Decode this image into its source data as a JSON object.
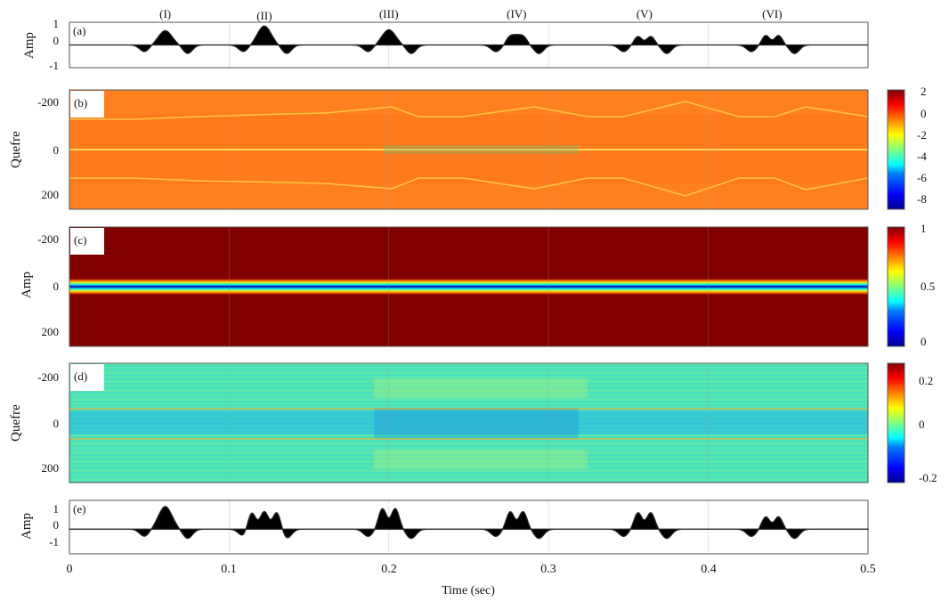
{
  "xlabel": "Time (sec)",
  "x_ticks": [
    "0",
    "0.1",
    "0.2",
    "0.3",
    "0.4",
    "0.5"
  ],
  "pulse_labels": [
    "(I)",
    "(II)",
    "(III)",
    "(IV)",
    "(V)",
    "(VI)"
  ],
  "colors": {
    "signal_fill": "#000000",
    "colormap": [
      "#00008f",
      "#0000ff",
      "#0080ff",
      "#00ffff",
      "#80ff80",
      "#ffff00",
      "#ff8000",
      "#ff0000",
      "#800000"
    ]
  },
  "chart_data": [
    {
      "type": "line",
      "panel_label": "(a)",
      "ylabel": "Amp",
      "xlim": [
        0,
        0.5
      ],
      "ylim": [
        -1.2,
        1.2
      ],
      "y_ticks": [
        "1",
        "0",
        "-1"
      ],
      "pulses": [
        {
          "label": "(I)",
          "center": 0.06,
          "peaks": 1,
          "amplitude": 0.75
        },
        {
          "label": "(II)",
          "center": 0.122,
          "peaks": 1,
          "amplitude": 1.0
        },
        {
          "label": "(III)",
          "center": 0.2,
          "peaks": 1,
          "amplitude": 0.8
        },
        {
          "label": "(IV)",
          "center": 0.28,
          "peaks": "flat",
          "amplitude": 0.55
        },
        {
          "label": "(V)",
          "center": 0.36,
          "peaks": 2,
          "amplitude": 0.45
        },
        {
          "label": "(VI)",
          "center": 0.44,
          "peaks": 2,
          "amplitude": 0.5
        }
      ]
    },
    {
      "type": "heatmap",
      "panel_label": "(b)",
      "ylabel": "Quefre",
      "xlim": [
        0,
        0.5
      ],
      "ylim": [
        -250,
        250
      ],
      "y_ticks": [
        "-200",
        "0",
        "200"
      ],
      "colorbar_ticks": [
        "2",
        "0",
        "-2",
        "-4",
        "-6",
        "-8"
      ],
      "clim": [
        -9,
        2.5
      ]
    },
    {
      "type": "heatmap",
      "panel_label": "(c)",
      "ylabel": "Amp",
      "xlim": [
        0,
        0.5
      ],
      "ylim": [
        -250,
        250
      ],
      "y_ticks": [
        "-200",
        "0",
        "200"
      ],
      "colorbar_ticks": [
        "1",
        "0.5",
        "0"
      ],
      "clim": [
        0,
        1
      ]
    },
    {
      "type": "heatmap",
      "panel_label": "(d)",
      "ylabel": "Quefre",
      "xlim": [
        0,
        0.5
      ],
      "ylim": [
        -250,
        250
      ],
      "y_ticks": [
        "-200",
        "0",
        "200"
      ],
      "colorbar_ticks": [
        "0.2",
        "0",
        "-0.2"
      ],
      "clim": [
        -0.27,
        0.27
      ]
    },
    {
      "type": "line",
      "panel_label": "(e)",
      "ylabel": "Amp",
      "xlim": [
        0,
        0.5
      ],
      "ylim": [
        -1.2,
        1.4
      ],
      "y_ticks": [
        "1",
        "0",
        "-1"
      ],
      "pulses": [
        {
          "center": 0.06,
          "peaks": 1,
          "amplitude": 1.1
        },
        {
          "center": 0.122,
          "peaks": 3,
          "amplitude": 0.85
        },
        {
          "center": 0.2,
          "peaks": 2,
          "amplitude": 1.0
        },
        {
          "center": 0.28,
          "peaks": 2,
          "amplitude": 0.85
        },
        {
          "center": 0.36,
          "peaks": 2,
          "amplitude": 0.8
        },
        {
          "center": 0.44,
          "peaks": 2,
          "amplitude": 0.6
        }
      ]
    }
  ]
}
